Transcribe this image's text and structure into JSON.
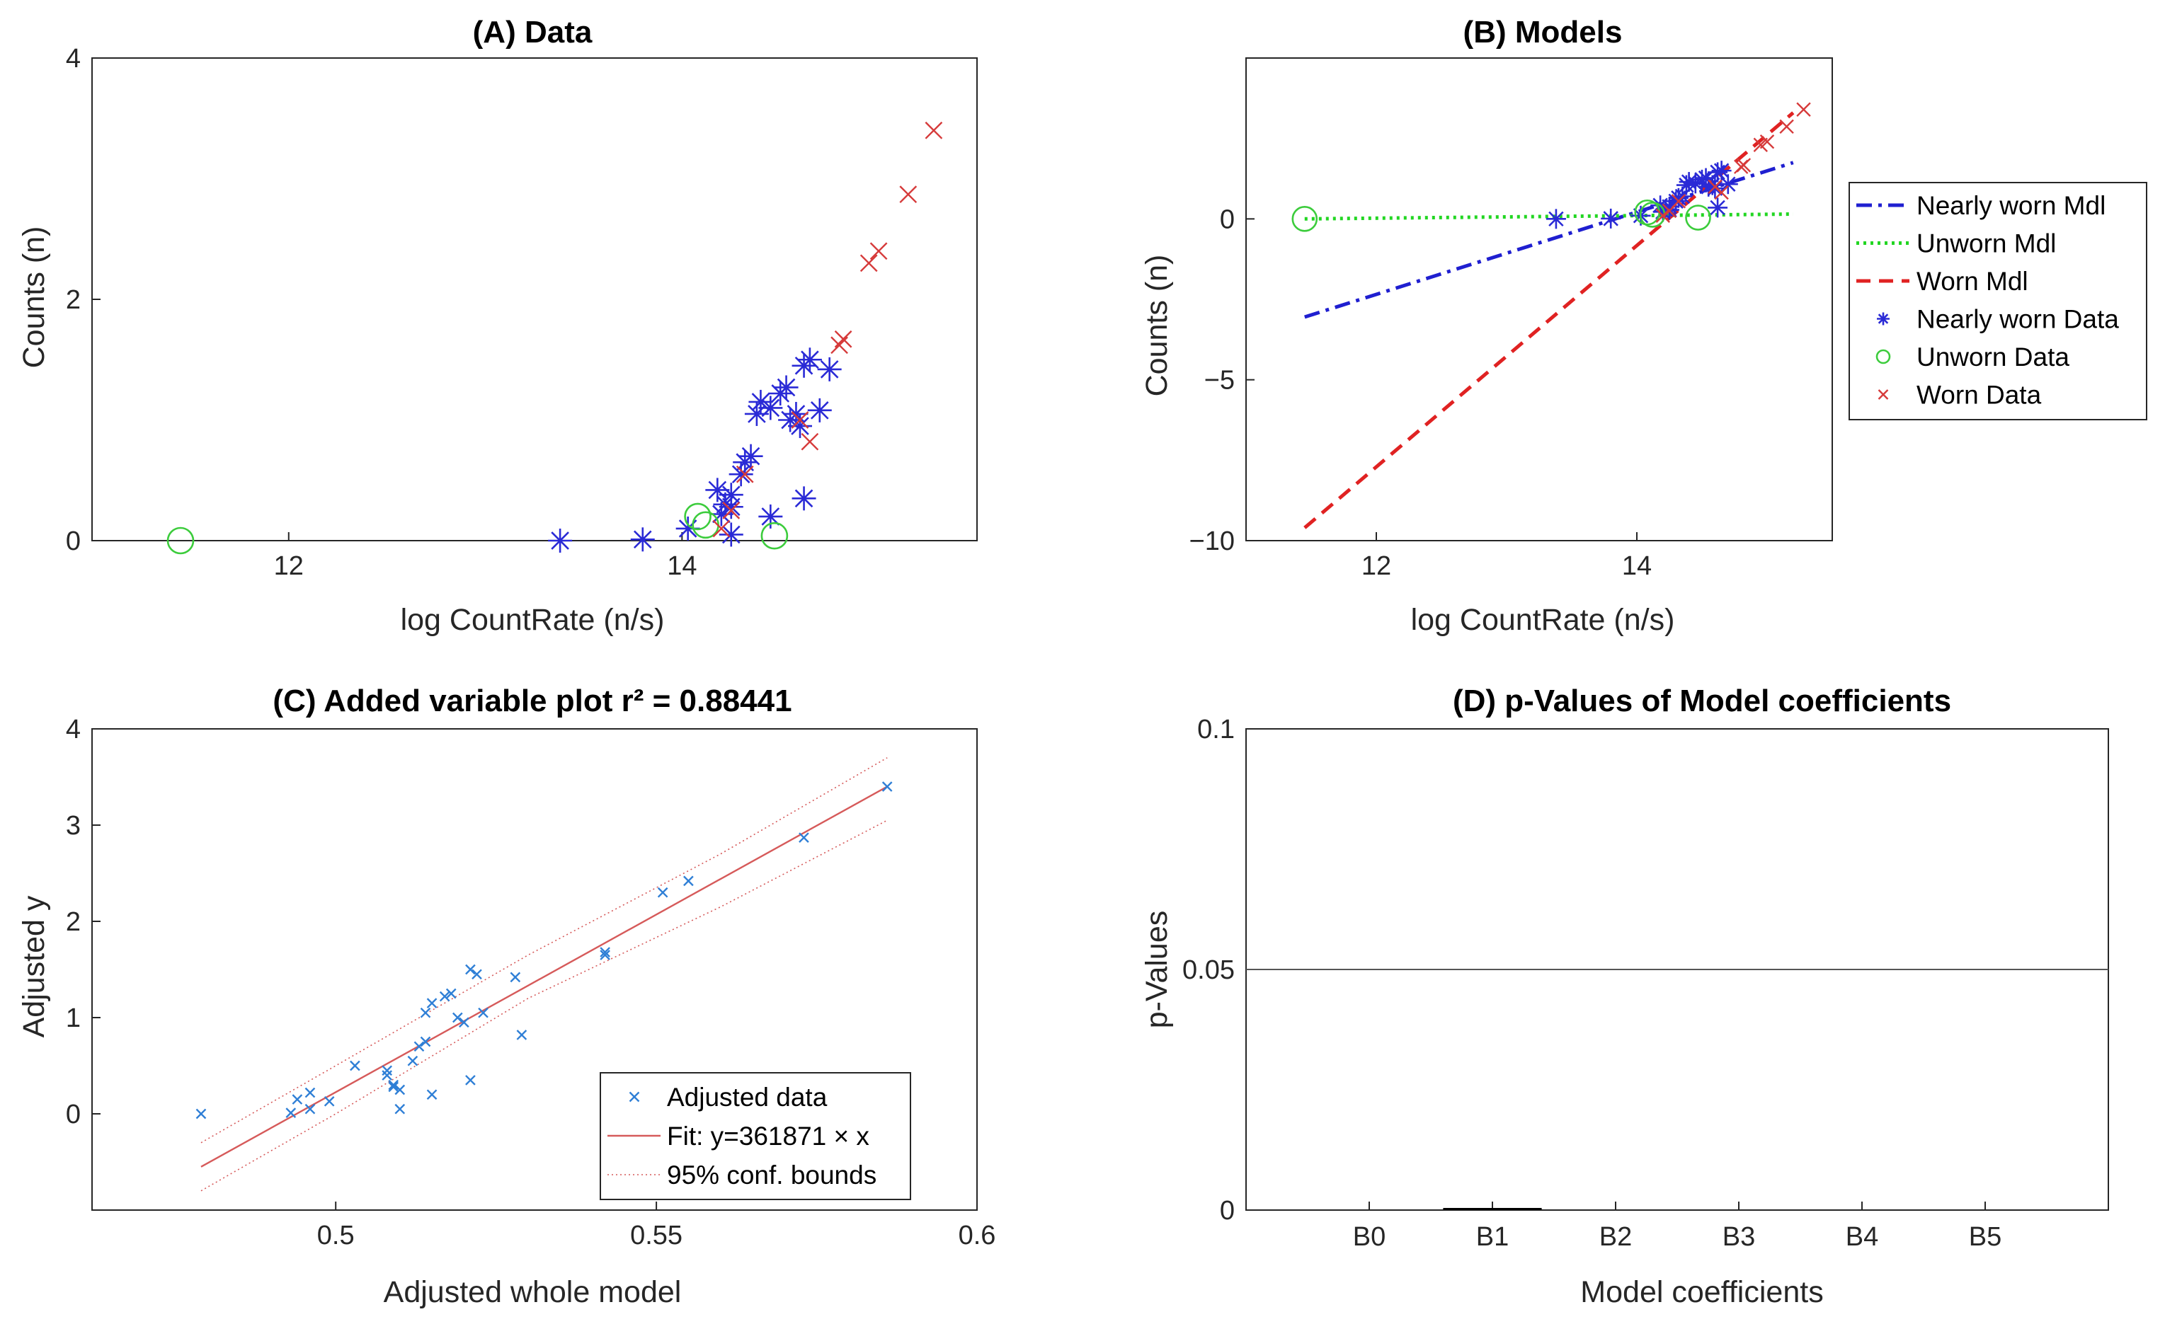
{
  "chart_data": [
    {
      "id": "A",
      "type": "scatter",
      "title": "(A) Data",
      "xlabel": "log CountRate (n/s)",
      "ylabel": "Counts (n)",
      "xlim": [
        11.0,
        15.5
      ],
      "ylim": [
        0,
        4
      ],
      "xticks": [
        12,
        14
      ],
      "yticks": [
        0,
        2,
        4
      ],
      "series": [
        {
          "name": "Nearly worn Data",
          "marker": "asterisk",
          "color": "#2a2ad6",
          "points": [
            [
              13.38,
              0.0
            ],
            [
              13.8,
              0.01
            ],
            [
              14.03,
              0.1
            ],
            [
              14.2,
              0.22
            ],
            [
              14.22,
              0.3
            ],
            [
              14.25,
              0.38
            ],
            [
              14.18,
              0.42
            ],
            [
              14.25,
              0.28
            ],
            [
              14.25,
              0.05
            ],
            [
              14.3,
              0.55
            ],
            [
              14.32,
              0.65
            ],
            [
              14.35,
              0.7
            ],
            [
              14.38,
              1.05
            ],
            [
              14.4,
              1.15
            ],
            [
              14.45,
              0.2
            ],
            [
              14.45,
              1.1
            ],
            [
              14.5,
              1.22
            ],
            [
              14.53,
              1.27
            ],
            [
              14.55,
              1.0
            ],
            [
              14.58,
              1.05
            ],
            [
              14.6,
              0.95
            ],
            [
              14.62,
              1.45
            ],
            [
              14.65,
              1.5
            ],
            [
              14.7,
              1.08
            ],
            [
              14.75,
              1.42
            ],
            [
              14.62,
              0.35
            ]
          ]
        },
        {
          "name": "Unworn Data",
          "marker": "circle",
          "color": "#3ccc3c",
          "points": [
            [
              11.45,
              0.0
            ],
            [
              14.08,
              0.2
            ],
            [
              14.12,
              0.13
            ],
            [
              14.47,
              0.04
            ]
          ]
        },
        {
          "name": "Worn Data",
          "marker": "x",
          "color": "#d63a3a",
          "points": [
            [
              14.2,
              0.1
            ],
            [
              14.25,
              0.25
            ],
            [
              14.32,
              0.55
            ],
            [
              14.6,
              1.0
            ],
            [
              14.65,
              0.82
            ],
            [
              14.8,
              1.62
            ],
            [
              14.82,
              1.67
            ],
            [
              14.95,
              2.3
            ],
            [
              15.0,
              2.4
            ],
            [
              15.15,
              2.87
            ],
            [
              15.28,
              3.4
            ]
          ]
        }
      ]
    },
    {
      "id": "B",
      "type": "line",
      "title": "(B) Models",
      "xlabel": "log CountRate (n/s)",
      "ylabel": "Counts (n)",
      "xlim": [
        11.0,
        15.5
      ],
      "ylim": [
        -10,
        5
      ],
      "xticks": [
        12,
        14
      ],
      "yticks": [
        -10,
        -5,
        0
      ],
      "legend_position": "outside-right",
      "lines": [
        {
          "name": "Nearly worn Mdl",
          "style": "dashdot",
          "color": "#1f1fd0",
          "points": [
            [
              11.45,
              -3.05
            ],
            [
              15.2,
              1.75
            ]
          ]
        },
        {
          "name": "Unworn Mdl",
          "style": "dotted",
          "color": "#22d622",
          "points": [
            [
              11.45,
              0.0
            ],
            [
              15.2,
              0.15
            ]
          ]
        },
        {
          "name": "Worn Mdl",
          "style": "dashed",
          "color": "#e02222",
          "points": [
            [
              11.45,
              -9.6
            ],
            [
              15.2,
              3.3
            ]
          ]
        }
      ],
      "series": [
        {
          "name": "Nearly worn Data",
          "marker": "asterisk",
          "color": "#2a2ad6",
          "points": [
            [
              13.38,
              0.0
            ],
            [
              13.8,
              0.01
            ],
            [
              14.03,
              0.1
            ],
            [
              14.2,
              0.22
            ],
            [
              14.22,
              0.3
            ],
            [
              14.25,
              0.38
            ],
            [
              14.18,
              0.42
            ],
            [
              14.25,
              0.28
            ],
            [
              14.3,
              0.55
            ],
            [
              14.32,
              0.65
            ],
            [
              14.35,
              0.7
            ],
            [
              14.38,
              1.05
            ],
            [
              14.4,
              1.15
            ],
            [
              14.45,
              1.1
            ],
            [
              14.5,
              1.22
            ],
            [
              14.53,
              1.27
            ],
            [
              14.55,
              1.0
            ],
            [
              14.58,
              1.05
            ],
            [
              14.6,
              0.95
            ],
            [
              14.62,
              1.45
            ],
            [
              14.65,
              1.5
            ],
            [
              14.7,
              1.08
            ],
            [
              14.62,
              0.35
            ]
          ]
        },
        {
          "name": "Unworn Data",
          "marker": "circle",
          "color": "#3ccc3c",
          "points": [
            [
              11.45,
              0.0
            ],
            [
              14.08,
              0.2
            ],
            [
              14.12,
              0.13
            ],
            [
              14.47,
              0.04
            ]
          ]
        },
        {
          "name": "Worn Data",
          "marker": "x",
          "color": "#d63a3a",
          "points": [
            [
              14.2,
              0.1
            ],
            [
              14.25,
              0.25
            ],
            [
              14.32,
              0.55
            ],
            [
              14.6,
              1.0
            ],
            [
              14.65,
              0.82
            ],
            [
              14.8,
              1.62
            ],
            [
              14.82,
              1.67
            ],
            [
              14.95,
              2.3
            ],
            [
              15.0,
              2.4
            ],
            [
              15.15,
              2.87
            ],
            [
              15.28,
              3.4
            ]
          ]
        }
      ],
      "legend": [
        "Nearly worn Mdl",
        "Unworn Mdl",
        "Worn Mdl",
        "Nearly worn Data",
        "Unworn Data",
        "Worn Data"
      ]
    },
    {
      "id": "C",
      "type": "scatter",
      "title": "(C) Added variable plot r² = 0.88441",
      "xlabel": "Adjusted whole model",
      "ylabel": "Adjusted y",
      "xlim": [
        0.462,
        0.6
      ],
      "ylim": [
        -1,
        4
      ],
      "xticks": [
        0.5,
        0.55,
        0.6
      ],
      "xticklabels": [
        "0.5",
        "0.55",
        "0.6"
      ],
      "yticks": [
        0,
        1,
        2,
        3,
        4
      ],
      "legend_position": "bottom-right",
      "series": [
        {
          "name": "Adjusted data",
          "marker": "x",
          "color": "#2f7fd6",
          "points": [
            [
              0.479,
              0.0
            ],
            [
              0.493,
              0.01
            ],
            [
              0.494,
              0.15
            ],
            [
              0.496,
              0.22
            ],
            [
              0.496,
              0.05
            ],
            [
              0.499,
              0.13
            ],
            [
              0.503,
              0.5
            ],
            [
              0.508,
              0.45
            ],
            [
              0.508,
              0.4
            ],
            [
              0.509,
              0.3
            ],
            [
              0.509,
              0.28
            ],
            [
              0.51,
              0.05
            ],
            [
              0.51,
              0.25
            ],
            [
              0.512,
              0.55
            ],
            [
              0.513,
              0.7
            ],
            [
              0.514,
              0.75
            ],
            [
              0.514,
              1.05
            ],
            [
              0.515,
              1.15
            ],
            [
              0.515,
              0.2
            ],
            [
              0.517,
              1.22
            ],
            [
              0.518,
              1.25
            ],
            [
              0.519,
              1.0
            ],
            [
              0.52,
              0.95
            ],
            [
              0.521,
              0.35
            ],
            [
              0.521,
              1.5
            ],
            [
              0.522,
              1.45
            ],
            [
              0.523,
              1.05
            ],
            [
              0.528,
              1.42
            ],
            [
              0.529,
              0.82
            ],
            [
              0.542,
              1.65
            ],
            [
              0.542,
              1.68
            ],
            [
              0.551,
              2.3
            ],
            [
              0.555,
              2.42
            ],
            [
              0.573,
              2.87
            ],
            [
              0.586,
              3.4
            ]
          ]
        }
      ],
      "fit": {
        "name": "Fit: y=361871 × x",
        "color": "#d65a5a",
        "points": [
          [
            0.479,
            -0.55
          ],
          [
            0.586,
            3.4
          ]
        ]
      },
      "bounds": {
        "name": "95% conf. bounds",
        "color": "#d65a5a",
        "upper": [
          [
            0.479,
            -0.3
          ],
          [
            0.5,
            0.5
          ],
          [
            0.53,
            1.65
          ],
          [
            0.56,
            2.7
          ],
          [
            0.586,
            3.7
          ]
        ],
        "lower": [
          [
            0.479,
            -0.8
          ],
          [
            0.5,
            0.0
          ],
          [
            0.53,
            1.2
          ],
          [
            0.56,
            2.15
          ],
          [
            0.586,
            3.05
          ]
        ]
      },
      "legend": [
        "Adjusted data",
        "Fit: y=361871 × x",
        "95% conf. bounds"
      ]
    },
    {
      "id": "D",
      "type": "bar",
      "title": "(D) p-Values of Model coefficients",
      "xlabel": "Model coefficients",
      "ylabel": "p-Values",
      "categories": [
        "B0",
        "B1",
        "B2",
        "B3",
        "B4",
        "B5"
      ],
      "values": [
        0.0,
        0.0002,
        0.0,
        0.0,
        0.0,
        0.0
      ],
      "ylim": [
        0,
        0.1
      ],
      "yticks": [
        0,
        0.05,
        0.1
      ],
      "yticklabels": [
        "0",
        "0.05",
        "0.1"
      ],
      "reference_line": 0.05
    }
  ]
}
